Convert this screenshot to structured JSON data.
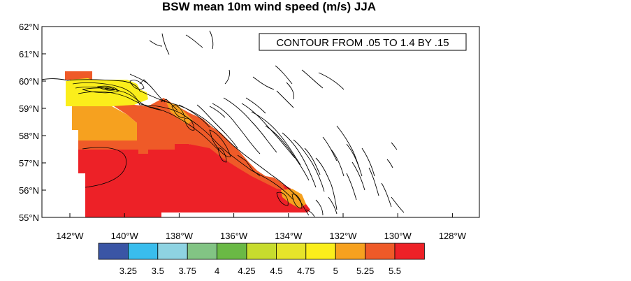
{
  "title": "BSW mean 10m wind speed (m/s)  JJA",
  "contour_note": "CONTOUR FROM .05 TO 1.4 BY .15",
  "lat_ticks": [
    "62°N",
    "61°N",
    "60°N",
    "59°N",
    "58°N",
    "57°N",
    "56°N",
    "55°N"
  ],
  "lon_ticks": [
    "142°W",
    "140°W",
    "138°W",
    "136°W",
    "134°W",
    "132°W",
    "130°W",
    "128°W"
  ],
  "colorbar": {
    "colors": [
      "#3a55a5",
      "#39bded",
      "#8ed3e2",
      "#82c484",
      "#6ab945",
      "#c7dc2e",
      "#e6e42a",
      "#fbee1b",
      "#f6a11f",
      "#ef5a28",
      "#ed2127"
    ],
    "labels": [
      "3.25",
      "3.5",
      "3.75",
      "4",
      "4.25",
      "4.5",
      "4.75",
      "5",
      "5.25",
      "5.5"
    ]
  },
  "map_data": {
    "lon_range": [
      -143,
      -127
    ],
    "lat_range": [
      55,
      62
    ],
    "value_levels": [
      "<3.25",
      "3.25-3.5",
      "3.5-3.75",
      "3.75-4",
      "4-4.25",
      "4.25-4.5",
      "4.5-4.75",
      "4.75-5",
      "5-5.25",
      "5.25-5.5",
      ">5.5"
    ]
  }
}
